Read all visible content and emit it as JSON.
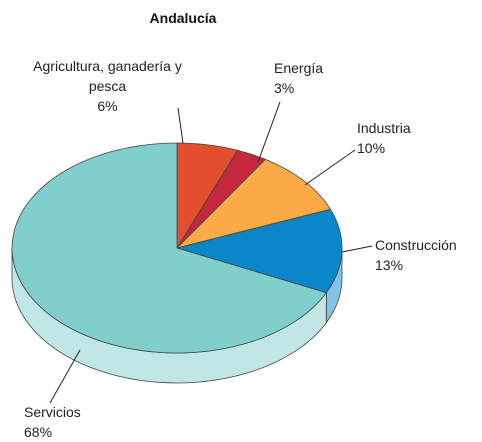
{
  "chart_data": {
    "type": "pie",
    "title": "Andalucía",
    "categories": [
      "Agricultura, ganadería y pesca",
      "Energía",
      "Industria",
      "Construcción",
      "Servicios"
    ],
    "values": [
      6,
      3,
      10,
      13,
      68
    ],
    "value_labels": [
      "6%",
      "3%",
      "10%",
      "13%",
      "68%"
    ],
    "colors": [
      "#e24e2e",
      "#c3283c",
      "#fbaa48",
      "#0a87c9",
      "#80cfcd"
    ]
  }
}
